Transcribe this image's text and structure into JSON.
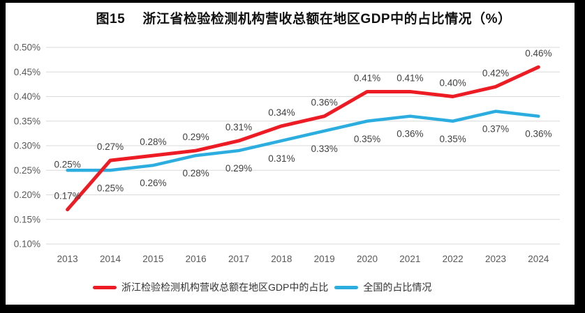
{
  "title": "图15　 浙江省检验检测机构营收总额在地区GDP中的占比情况（%）",
  "colors": {
    "series_red": "#ED1C24",
    "series_blue": "#2BAEDF",
    "gridline": "#D9D9D9",
    "tick_text": "#595959",
    "data_label_text": "#404040",
    "title_text": "#111111",
    "surface_background": "#FFFFFF",
    "frame_background": "#000000"
  },
  "chart_data": {
    "type": "line",
    "title": "图15　 浙江省检验检测机构营收总额在地区GDP中的占比情况（%）",
    "categories": [
      "2013",
      "2014",
      "2015",
      "2016",
      "2017",
      "2018",
      "2019",
      "2020",
      "2021",
      "2022",
      "2023",
      "2024"
    ],
    "series": [
      {
        "name": "浙江检验检测机构营收总额在地区GDP中的占比",
        "color_key": "series_red",
        "stroke_width": 5,
        "values": [
          0.17,
          0.27,
          0.28,
          0.29,
          0.31,
          0.34,
          0.36,
          0.41,
          0.41,
          0.4,
          0.42,
          0.46
        ],
        "data_labels": [
          "0.17%",
          "0.27%",
          "0.28%",
          "0.29%",
          "0.31%",
          "0.34%",
          "0.36%",
          "0.41%",
          "0.41%",
          "0.40%",
          "0.42%",
          "0.46%"
        ],
        "label_position": "above",
        "label_position_overrides": {}
      },
      {
        "name": "全国的占比情况",
        "color_key": "series_blue",
        "stroke_width": 4.5,
        "values": [
          0.25,
          0.25,
          0.26,
          0.28,
          0.29,
          0.31,
          0.33,
          0.35,
          0.36,
          0.35,
          0.37,
          0.36
        ],
        "data_labels": [
          "0.25%",
          "0.25%",
          "0.26%",
          "0.28%",
          "0.29%",
          "0.31%",
          "0.33%",
          "0.35%",
          "0.36%",
          "0.35%",
          "0.37%",
          "0.36%"
        ],
        "label_position": "below",
        "label_position_overrides": {
          "0": "above-close"
        }
      }
    ],
    "xlabel": "",
    "ylabel": "",
    "ylim": [
      0.1,
      0.5
    ],
    "ytick_step": 0.05,
    "ytick_labels": [
      "0.10%",
      "0.15%",
      "0.20%",
      "0.25%",
      "0.30%",
      "0.35%",
      "0.40%",
      "0.45%",
      "0.50%"
    ],
    "ytick_format": "percent_2dp",
    "grid": "horizontal",
    "legend_position": "bottom"
  },
  "legend": {
    "items": [
      {
        "label": "浙江检验检测机构营收总额在地区GDP中的占比",
        "color_key": "series_red"
      },
      {
        "label": "全国的占比情况",
        "color_key": "series_blue"
      }
    ]
  }
}
